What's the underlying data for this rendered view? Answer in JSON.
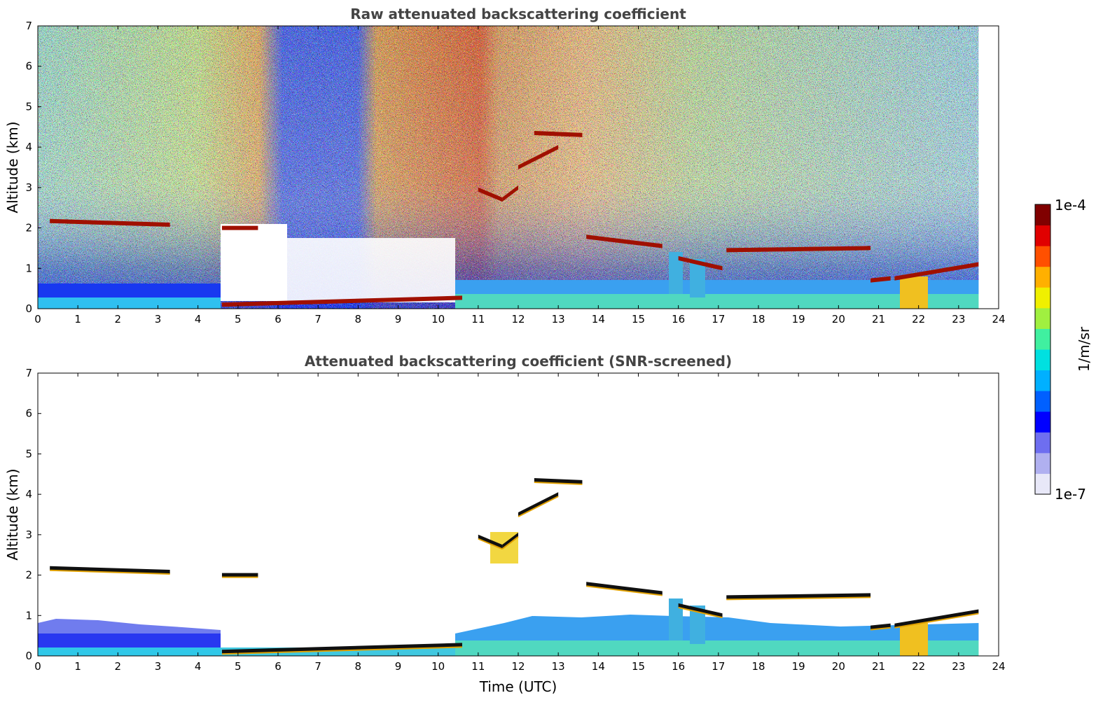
{
  "chart_data": [
    {
      "type": "heatmap",
      "title": "Raw attenuated backscattering coefficient",
      "xlabel": "",
      "ylabel": "Altitude (km)",
      "xlim": [
        0,
        24
      ],
      "ylim": [
        0,
        7
      ],
      "x_ticks": [
        "0",
        "1",
        "2",
        "3",
        "4",
        "5",
        "6",
        "7",
        "8",
        "9",
        "10",
        "11",
        "12",
        "13",
        "14",
        "15",
        "16",
        "17",
        "18",
        "19",
        "20",
        "21",
        "22",
        "23",
        "24"
      ],
      "y_ticks": [
        "0",
        "1",
        "2",
        "3",
        "4",
        "5",
        "6",
        "7"
      ],
      "data_end_time": 23.5,
      "colormap": "jet",
      "cloud_layers": [
        {
          "x": [
            0.3,
            3.3
          ],
          "y": [
            2.17,
            2.08
          ]
        },
        {
          "x": [
            4.6,
            5.5
          ],
          "y": [
            2.0,
            2.0
          ]
        },
        {
          "x": [
            11.0,
            11.6
          ],
          "y": [
            2.95,
            2.7
          ]
        },
        {
          "x": [
            11.6,
            12.0
          ],
          "y": [
            2.7,
            3.0
          ]
        },
        {
          "x": [
            12.0,
            13.0
          ],
          "y": [
            3.5,
            4.0
          ]
        },
        {
          "x": [
            12.4,
            13.6
          ],
          "y": [
            4.35,
            4.3
          ]
        },
        {
          "x": [
            13.7,
            15.6
          ],
          "y": [
            1.78,
            1.55
          ]
        },
        {
          "x": [
            16.0,
            17.1
          ],
          "y": [
            1.25,
            1.0
          ]
        },
        {
          "x": [
            17.2,
            20.8
          ],
          "y": [
            1.45,
            1.5
          ]
        },
        {
          "x": [
            20.8,
            21.3
          ],
          "y": [
            0.7,
            0.75
          ]
        },
        {
          "x": [
            21.4,
            23.5
          ],
          "y": [
            0.75,
            1.1
          ]
        },
        {
          "x": [
            4.6,
            10.6
          ],
          "y": [
            0.1,
            0.27
          ]
        }
      ]
    },
    {
      "type": "heatmap",
      "title": "Attenuated backscattering coefficient (SNR-screened)",
      "xlabel": "Time (UTC)",
      "ylabel": "Altitude (km)",
      "xlim": [
        0,
        24
      ],
      "ylim": [
        0,
        7
      ],
      "x_ticks": [
        "0",
        "1",
        "2",
        "3",
        "4",
        "5",
        "6",
        "7",
        "8",
        "9",
        "10",
        "11",
        "12",
        "13",
        "14",
        "15",
        "16",
        "17",
        "18",
        "19",
        "20",
        "21",
        "22",
        "23",
        "24"
      ],
      "y_ticks": [
        "0",
        "1",
        "2",
        "3",
        "4",
        "5",
        "6",
        "7"
      ],
      "data_end_time": 23.5,
      "colormap": "jet"
    }
  ],
  "colorbar": {
    "label": "1/m/sr",
    "max_label": "1e-4",
    "min_label": "1e-7",
    "colors": [
      "#e8e8f8",
      "#b0b0f0",
      "#6e6ef0",
      "#0000ff",
      "#0060ff",
      "#00b0ff",
      "#00e0e0",
      "#40f0a0",
      "#a0f040",
      "#f0f000",
      "#ffb000",
      "#ff5000",
      "#e00000",
      "#800000"
    ]
  }
}
